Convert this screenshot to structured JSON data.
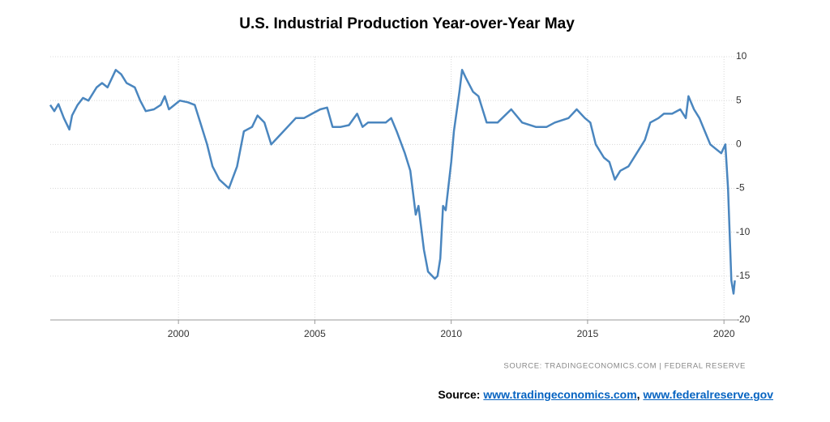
{
  "chart_data": {
    "type": "line",
    "title": "U.S. Industrial Production Year-over-Year May",
    "source_note": "SOURCE: TRADINGECONOMICS.COM | FEDERAL RESERVE",
    "series": [
      {
        "name": "Industrial Production YoY",
        "color": "#4a86bf",
        "x": [
          1995.3,
          1995.45,
          1995.6,
          1995.8,
          1996.0,
          1996.1,
          1996.3,
          1996.5,
          1996.7,
          1997.0,
          1997.2,
          1997.4,
          1997.7,
          1997.9,
          1998.1,
          1998.4,
          1998.6,
          1998.8,
          1999.1,
          1999.35,
          1999.5,
          1999.65,
          1999.85,
          2000.05,
          2000.35,
          2000.6,
          2000.8,
          2001.05,
          2001.25,
          2001.5,
          2001.85,
          2002.15,
          2002.4,
          2002.7,
          2002.9,
          2003.15,
          2003.4,
          2003.7,
          2004.0,
          2004.3,
          2004.6,
          2004.9,
          2005.2,
          2005.45,
          2005.65,
          2005.95,
          2006.25,
          2006.55,
          2006.75,
          2006.95,
          2007.3,
          2007.6,
          2007.8,
          2008.0,
          2008.3,
          2008.5,
          2008.7,
          2008.8,
          2009.0,
          2009.15,
          2009.4,
          2009.5,
          2009.6,
          2009.7,
          2009.8,
          2010.0,
          2010.1,
          2010.3,
          2010.4,
          2010.55,
          2010.8,
          2011.0,
          2011.3,
          2011.7,
          2012.2,
          2012.6,
          2013.1,
          2013.5,
          2013.8,
          2014.3,
          2014.6,
          2014.9,
          2015.1,
          2015.3,
          2015.6,
          2015.8,
          2016.0,
          2016.2,
          2016.5,
          2016.8,
          2017.1,
          2017.3,
          2017.6,
          2017.8,
          2018.1,
          2018.4,
          2018.6,
          2018.7,
          2018.9,
          2019.1,
          2019.3,
          2019.5,
          2019.7,
          2019.9,
          2020.05,
          2020.15,
          2020.27,
          2020.35,
          2020.4
        ],
        "values": [
          4.5,
          3.8,
          4.6,
          3,
          1.7,
          3.3,
          4.5,
          5.3,
          5,
          6.5,
          7,
          6.5,
          8.5,
          8,
          7,
          6.5,
          5,
          3.8,
          4,
          4.5,
          5.5,
          4,
          4.5,
          5,
          4.8,
          4.5,
          2.5,
          0,
          -2.5,
          -4,
          -5,
          -2.5,
          1.5,
          2,
          3.3,
          2.5,
          0,
          1,
          2,
          3,
          3,
          3.5,
          4,
          4.2,
          2,
          2,
          2.2,
          3.5,
          2,
          2.5,
          2.5,
          2.5,
          3,
          1.5,
          -1,
          -3,
          -8,
          -7,
          -12,
          -14.5,
          -15.3,
          -15,
          -13,
          -7,
          -7.5,
          -2,
          1.5,
          6,
          8.5,
          7.5,
          6,
          5.5,
          2.5,
          2.5,
          4,
          2.5,
          2,
          2,
          2.5,
          3,
          4,
          3,
          2.5,
          0,
          -1.5,
          -2,
          -4,
          -3,
          -2.5,
          -1,
          0.5,
          2.5,
          3,
          3.5,
          3.5,
          4,
          3,
          5.5,
          4,
          3,
          1.5,
          0,
          -0.5,
          -1,
          0,
          -5,
          -15.5,
          -17,
          -15.5
        ]
      }
    ],
    "xlim": [
      1995.3,
      2020.5
    ],
    "ylim": [
      -20,
      10
    ],
    "xticks": [
      2000,
      2005,
      2010,
      2015,
      2020
    ],
    "yticks": [
      -20,
      -15,
      -10,
      -5,
      0,
      5,
      10
    ],
    "grid": true
  },
  "footer": {
    "label": "Source:",
    "links": [
      "www.tradingeconomics.com",
      "www.federalreserve.gov"
    ],
    "separator": ","
  }
}
